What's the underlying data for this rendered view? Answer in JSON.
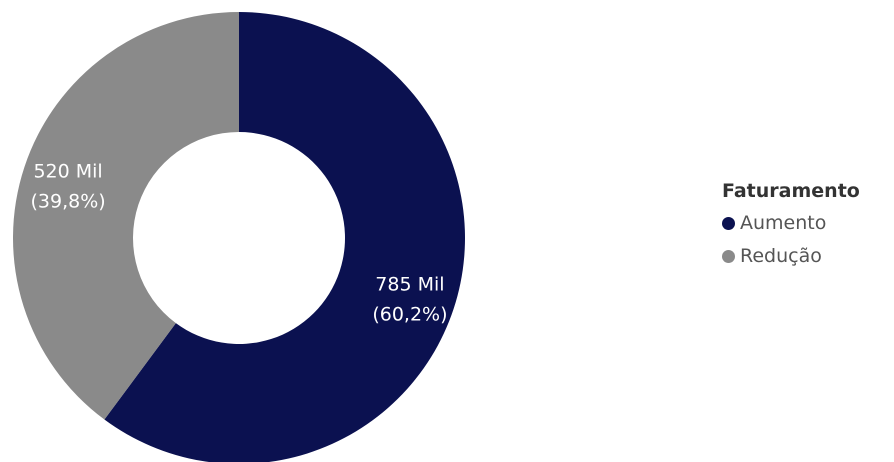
{
  "chart_data": {
    "type": "pie",
    "donut": true,
    "legend_title": "Faturamento",
    "legend_placement": "right",
    "categories": [
      "Aumento",
      "Redução"
    ],
    "values": [
      785,
      520
    ],
    "value_labels": [
      "785 Mil",
      "520 Mil"
    ],
    "percent_labels": [
      "(60,2%)",
      "(39,8%)"
    ],
    "colors": [
      "#0b1150",
      "#8a8a8a"
    ]
  }
}
